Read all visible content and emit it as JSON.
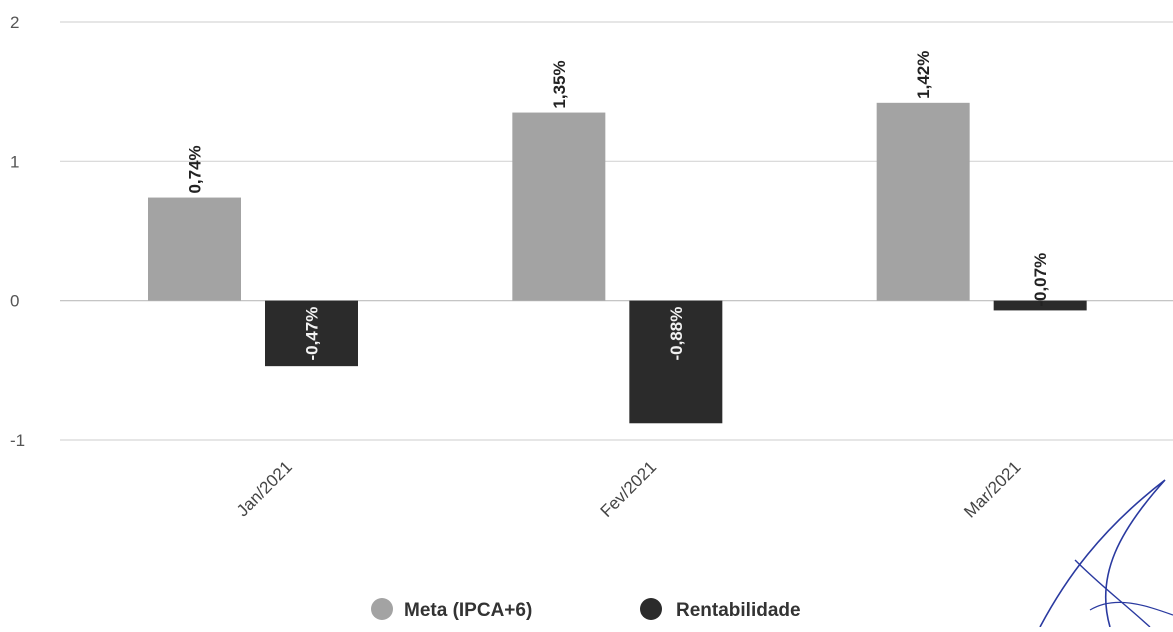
{
  "chart_data": {
    "type": "bar",
    "categories": [
      "Jan/2021",
      "Fev/2021",
      "Mar/2021"
    ],
    "series": [
      {
        "name": "Meta (IPCA+6)",
        "values": [
          0.74,
          1.35,
          1.42
        ],
        "labels": [
          "0,74%",
          "1,35%",
          "1,42%"
        ],
        "color": "#a3a3a3"
      },
      {
        "name": "Rentabilidade",
        "values": [
          -0.47,
          -0.88,
          -0.07
        ],
        "labels": [
          "-0,47%",
          "-0,88%",
          "-0,07%"
        ],
        "color": "#2b2b2b"
      }
    ],
    "y_ticks": [
      {
        "value": 2,
        "label": "2"
      },
      {
        "value": 1,
        "label": "1"
      },
      {
        "value": 0,
        "label": "0"
      },
      {
        "value": -1,
        "label": "-1"
      }
    ],
    "ylim": [
      -1,
      2
    ],
    "grid": true,
    "legend_position": "bottom-center",
    "title": "",
    "xlabel": "",
    "ylabel": ""
  }
}
